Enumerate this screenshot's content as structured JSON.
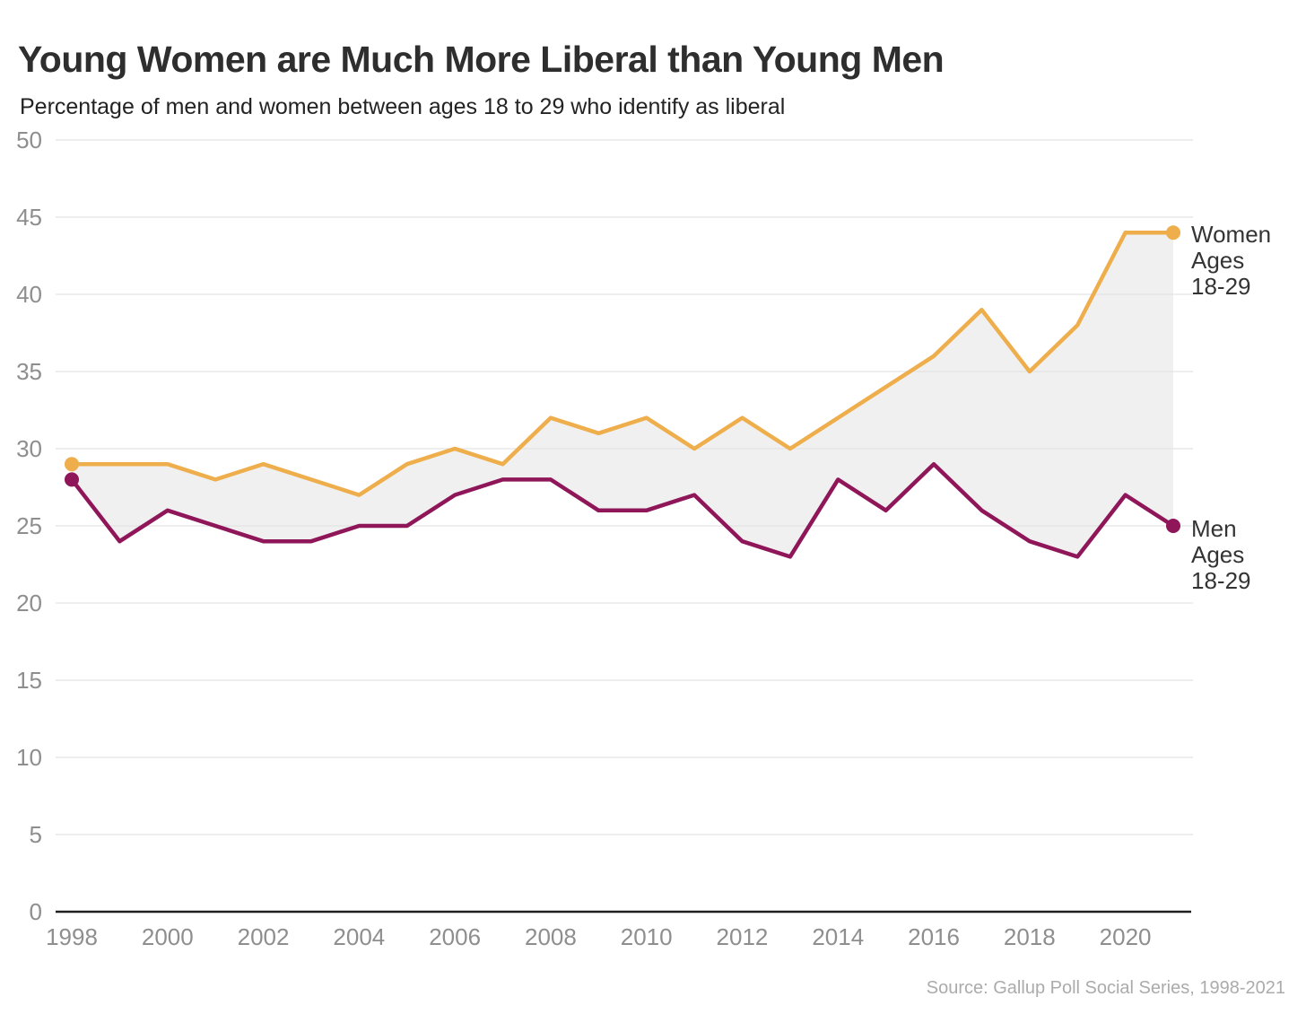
{
  "source": "Source: Gallup Poll Social Series, 1998-2021",
  "chart_data": {
    "type": "line",
    "title": "Young Women are Much More Liberal than Young Men",
    "subtitle": "Percentage of men and women between ages 18 to 29 who identify as liberal",
    "x": [
      1998,
      1999,
      2000,
      2001,
      2002,
      2003,
      2004,
      2005,
      2006,
      2007,
      2008,
      2009,
      2010,
      2011,
      2012,
      2013,
      2014,
      2015,
      2016,
      2017,
      2018,
      2019,
      2020,
      2021
    ],
    "series": [
      {
        "name": "Women Ages 18-29",
        "label": "Women\nAges\n18-29",
        "color": "#EFAE4C",
        "values": [
          29,
          29,
          29,
          28,
          29,
          28,
          27,
          29,
          30,
          29,
          32,
          31,
          32,
          30,
          32,
          30,
          32,
          34,
          36,
          39,
          35,
          38,
          44,
          44
        ]
      },
      {
        "name": "Men Ages 18-29",
        "label": "Men\nAges\n18-29",
        "color": "#8E1659",
        "values": [
          28,
          24,
          26,
          25,
          24,
          24,
          25,
          25,
          27,
          28,
          28,
          26,
          26,
          27,
          24,
          23,
          28,
          26,
          29,
          26,
          24,
          23,
          27,
          25
        ]
      }
    ],
    "xticks": [
      1998,
      2000,
      2002,
      2004,
      2006,
      2008,
      2010,
      2012,
      2014,
      2016,
      2018,
      2020
    ],
    "yticks": [
      0,
      5,
      10,
      15,
      20,
      25,
      30,
      35,
      40,
      45,
      50
    ],
    "ylim": [
      0,
      50
    ],
    "xlabel": "",
    "ylabel": "",
    "grid": true,
    "legend_position": "right-of-line-ends",
    "fill_between_color": "#F0F0F0",
    "colors": {
      "gridline": "#E3E3E3",
      "axis": "#1F1F1F",
      "tick_label": "#8E8E8E",
      "title": "#2E2E2E",
      "subtitle": "#232323",
      "source": "#ABABAB",
      "background": "#FFFFFF"
    }
  }
}
